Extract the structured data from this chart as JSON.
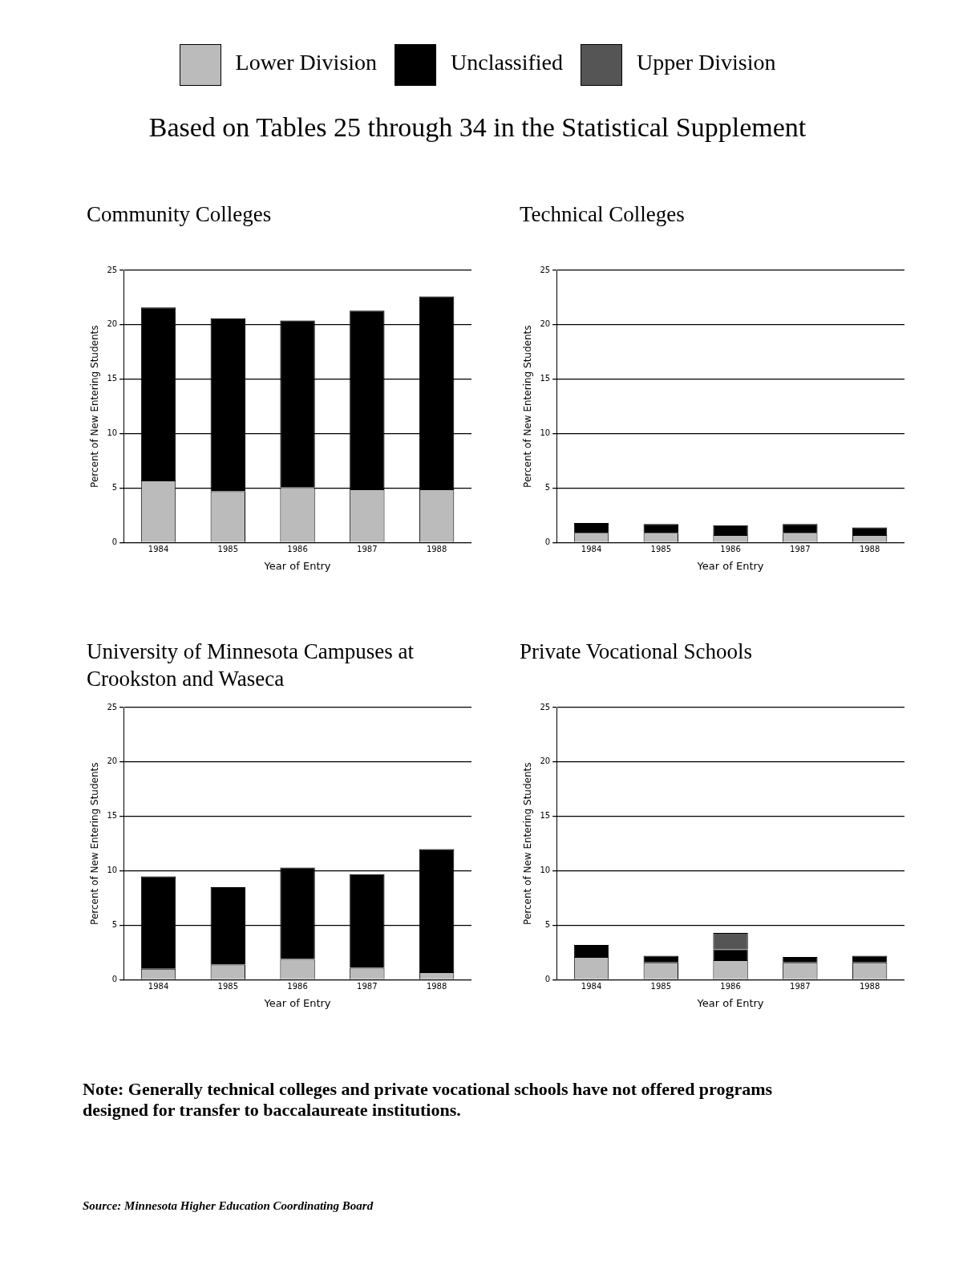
{
  "chart_data": [
    {
      "type": "bar",
      "subtitle": "Based on Tables 25 through 34 in the Statistical Supplement",
      "title": "Community Colleges",
      "xlabel": "Year of Entry",
      "ylabel": "Percent of New Entering Students",
      "categories": [
        "1984",
        "1985",
        "1986",
        "1987",
        "1988"
      ],
      "stacked": true,
      "legend": "top",
      "grid": "y",
      "ylim": [
        0,
        25
      ],
      "yticks": [
        0,
        5,
        10,
        15,
        20,
        25
      ],
      "series": [
        {
          "name": "Lower Division",
          "color": "#bbbbbb",
          "values": [
            5.7,
            4.7,
            5.1,
            4.9,
            4.9
          ]
        },
        {
          "name": "Unclassified",
          "color": "#000000",
          "values": [
            15.9,
            15.9,
            15.3,
            16.4,
            17.7
          ]
        },
        {
          "name": "Upper Division",
          "color": "#555555",
          "values": [
            0,
            0,
            0,
            0,
            0
          ]
        }
      ]
    },
    {
      "type": "bar",
      "title": "Technical Colleges",
      "xlabel": "Year of Entry",
      "ylabel": "Percent of New Entering Students",
      "categories": [
        "1984",
        "1985",
        "1986",
        "1987",
        "1988"
      ],
      "stacked": true,
      "grid": "y",
      "ylim": [
        0,
        25
      ],
      "yticks": [
        0,
        5,
        10,
        15,
        20,
        25
      ],
      "series": [
        {
          "color": "#bbbbbb",
          "values": [
            0.9,
            0.9,
            0.7,
            0.9,
            0.7
          ]
        },
        {
          "color": "#000000",
          "values": [
            0.9,
            0.8,
            0.9,
            0.8,
            0.7
          ]
        },
        {
          "color": "#555555",
          "values": [
            0,
            0,
            0,
            0,
            0
          ]
        }
      ]
    },
    {
      "type": "bar",
      "title": "University of Minnesota Campuses at Crookston and Waseca",
      "xlabel": "Year of Entry",
      "ylabel": "Percent of New Entering Students",
      "categories": [
        "1984",
        "1985",
        "1986",
        "1987",
        "1988"
      ],
      "stacked": true,
      "grid": "y",
      "ylim": [
        0,
        25
      ],
      "yticks": [
        0,
        5,
        10,
        15,
        20,
        25
      ],
      "series": [
        {
          "color": "#bbbbbb",
          "values": [
            1.0,
            1.4,
            1.9,
            1.1,
            0.7
          ]
        },
        {
          "color": "#000000",
          "values": [
            8.5,
            7.1,
            8.4,
            8.6,
            11.3
          ]
        },
        {
          "color": "#555555",
          "values": [
            0,
            0,
            0,
            0,
            0
          ]
        }
      ]
    },
    {
      "type": "bar",
      "title": "Private Vocational Schools",
      "xlabel": "Year of Entry",
      "ylabel": "Percent of New Entering Students",
      "categories": [
        "1984",
        "1985",
        "1986",
        "1987",
        "1988"
      ],
      "stacked": true,
      "grid": "y",
      "ylim": [
        0,
        25
      ],
      "yticks": [
        0,
        5,
        10,
        15,
        20,
        25
      ],
      "annotations": [
        "Note:  Generally technical colleges and private vocational schools have not offered programs designed for transfer to baccalaureate institutions.",
        "Source:  Minnesota Higher Education Coordinating Board"
      ],
      "series": [
        {
          "color": "#bbbbbb",
          "values": [
            2.1,
            1.6,
            1.8,
            1.6,
            1.6
          ]
        },
        {
          "color": "#000000",
          "values": [
            1.1,
            0.6,
            1.0,
            0.5,
            0.6
          ]
        },
        {
          "color": "#555555",
          "values": [
            0,
            0,
            1.5,
            0,
            0
          ]
        }
      ]
    }
  ]
}
